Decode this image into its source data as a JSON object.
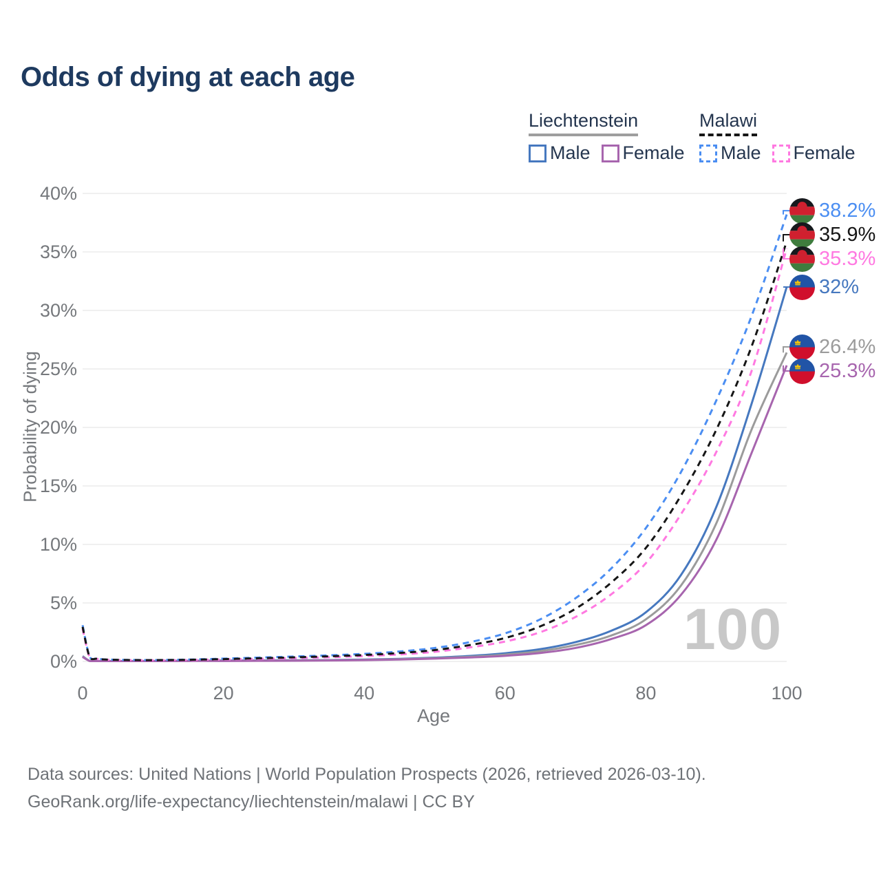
{
  "title": "Odds of dying at each age",
  "legend": {
    "groups": [
      {
        "country": "Liechtenstein",
        "style": "solid",
        "underline_color": "#9e9e9e",
        "items": [
          {
            "label": "Male",
            "series": "liech_male",
            "color": "#4678bf"
          },
          {
            "label": "Female",
            "series": "liech_female",
            "color": "#a765ae"
          }
        ]
      },
      {
        "country": "Malawi",
        "style": "dashed",
        "underline_color": "#161616",
        "items": [
          {
            "label": "Male",
            "series": "malawi_male",
            "color": "#4b8ef2"
          },
          {
            "label": "Female",
            "series": "malawi_female",
            "color": "#ff79e1"
          }
        ]
      }
    ]
  },
  "chart_data": {
    "type": "line",
    "title": "Odds of dying at each age",
    "xlabel": "Age",
    "ylabel": "Probability of dying",
    "xlim": [
      0,
      100
    ],
    "ylim": [
      0,
      40
    ],
    "x_ticks": [
      "0",
      "20",
      "40",
      "60",
      "80",
      "100"
    ],
    "y_tick_labels": [
      "0%",
      "5%",
      "10%",
      "15%",
      "20%",
      "25%",
      "30%",
      "35%",
      "40%"
    ],
    "grid": "horizontal",
    "legend_position": "top-right",
    "series": [
      {
        "id": "liech_male",
        "country": "Liechtenstein",
        "sex": "Male",
        "color": "#4678bf",
        "dashed": false,
        "flag": "liechtenstein",
        "end_label": "32%",
        "end_value": 32,
        "points": [
          [
            0,
            0.45
          ],
          [
            1,
            0.05
          ],
          [
            2,
            0.04
          ],
          [
            3,
            0.03
          ],
          [
            5,
            0.03
          ],
          [
            10,
            0.04
          ],
          [
            15,
            0.06
          ],
          [
            20,
            0.08
          ],
          [
            25,
            0.09
          ],
          [
            30,
            0.1
          ],
          [
            35,
            0.12
          ],
          [
            40,
            0.16
          ],
          [
            45,
            0.22
          ],
          [
            50,
            0.32
          ],
          [
            55,
            0.47
          ],
          [
            60,
            0.7
          ],
          [
            65,
            1.05
          ],
          [
            70,
            1.65
          ],
          [
            75,
            2.6
          ],
          [
            80,
            4.2
          ],
          [
            85,
            7.4
          ],
          [
            90,
            13.2
          ],
          [
            95,
            22
          ],
          [
            100,
            32
          ]
        ]
      },
      {
        "id": "liech_both",
        "country": "Liechtenstein",
        "sex": "Both",
        "color": "#9b9b9b",
        "dashed": false,
        "flag": "liechtenstein",
        "end_label": "26.4%",
        "end_value": 26.4,
        "points": [
          [
            0,
            0.42
          ],
          [
            1,
            0.05
          ],
          [
            2,
            0.04
          ],
          [
            3,
            0.03
          ],
          [
            5,
            0.03
          ],
          [
            10,
            0.03
          ],
          [
            15,
            0.05
          ],
          [
            20,
            0.06
          ],
          [
            25,
            0.07
          ],
          [
            30,
            0.08
          ],
          [
            35,
            0.1
          ],
          [
            40,
            0.13
          ],
          [
            45,
            0.19
          ],
          [
            50,
            0.28
          ],
          [
            55,
            0.4
          ],
          [
            60,
            0.58
          ],
          [
            65,
            0.88
          ],
          [
            70,
            1.4
          ],
          [
            75,
            2.2
          ],
          [
            80,
            3.6
          ],
          [
            85,
            6.5
          ],
          [
            90,
            11.8
          ],
          [
            95,
            19.8
          ],
          [
            100,
            26.4
          ]
        ]
      },
      {
        "id": "liech_female",
        "country": "Liechtenstein",
        "sex": "Female",
        "color": "#a765ae",
        "dashed": false,
        "flag": "liechtenstein",
        "end_label": "25.3%",
        "end_value": 25.3,
        "points": [
          [
            0,
            0.38
          ],
          [
            1,
            0.04
          ],
          [
            2,
            0.03
          ],
          [
            3,
            0.03
          ],
          [
            5,
            0.02
          ],
          [
            10,
            0.03
          ],
          [
            15,
            0.04
          ],
          [
            20,
            0.04
          ],
          [
            25,
            0.05
          ],
          [
            30,
            0.06
          ],
          [
            35,
            0.08
          ],
          [
            40,
            0.11
          ],
          [
            45,
            0.16
          ],
          [
            50,
            0.24
          ],
          [
            55,
            0.34
          ],
          [
            60,
            0.48
          ],
          [
            65,
            0.72
          ],
          [
            70,
            1.15
          ],
          [
            75,
            1.9
          ],
          [
            80,
            3.1
          ],
          [
            85,
            5.7
          ],
          [
            90,
            10.4
          ],
          [
            95,
            17.8
          ],
          [
            100,
            25.3
          ]
        ]
      },
      {
        "id": "malawi_male",
        "country": "Malawi",
        "sex": "Male",
        "color": "#4b8ef2",
        "dashed": true,
        "flag": "malawi",
        "end_label": "38.2%",
        "end_value": 38.2,
        "points": [
          [
            0,
            3.1
          ],
          [
            1,
            0.4
          ],
          [
            2,
            0.25
          ],
          [
            3,
            0.18
          ],
          [
            5,
            0.14
          ],
          [
            10,
            0.12
          ],
          [
            15,
            0.16
          ],
          [
            20,
            0.24
          ],
          [
            25,
            0.33
          ],
          [
            30,
            0.42
          ],
          [
            35,
            0.52
          ],
          [
            40,
            0.65
          ],
          [
            45,
            0.85
          ],
          [
            50,
            1.15
          ],
          [
            55,
            1.65
          ],
          [
            60,
            2.4
          ],
          [
            65,
            3.6
          ],
          [
            70,
            5.4
          ],
          [
            75,
            7.9
          ],
          [
            80,
            11.4
          ],
          [
            85,
            16.2
          ],
          [
            90,
            22.3
          ],
          [
            95,
            29.5
          ],
          [
            100,
            38.2
          ]
        ]
      },
      {
        "id": "malawi_female",
        "country": "Malawi",
        "sex": "Female",
        "color": "#ff79e1",
        "dashed": true,
        "flag": "malawi",
        "end_label": "35.3%",
        "end_value": 35.3,
        "points": [
          [
            0,
            2.8
          ],
          [
            1,
            0.36
          ],
          [
            2,
            0.22
          ],
          [
            3,
            0.16
          ],
          [
            5,
            0.12
          ],
          [
            10,
            0.1
          ],
          [
            15,
            0.12
          ],
          [
            20,
            0.17
          ],
          [
            25,
            0.22
          ],
          [
            30,
            0.28
          ],
          [
            35,
            0.36
          ],
          [
            40,
            0.46
          ],
          [
            45,
            0.6
          ],
          [
            50,
            0.82
          ],
          [
            55,
            1.2
          ],
          [
            60,
            1.7
          ],
          [
            65,
            2.5
          ],
          [
            70,
            3.8
          ],
          [
            75,
            5.7
          ],
          [
            80,
            8.4
          ],
          [
            85,
            12.6
          ],
          [
            90,
            17.9
          ],
          [
            95,
            24.8
          ],
          [
            100,
            35.3
          ]
        ]
      },
      {
        "id": "malawi_both",
        "country": "Malawi",
        "sex": "Both",
        "color": "#161616",
        "dashed": true,
        "flag": "malawi",
        "end_label": "35.9%",
        "end_value": 35.9,
        "points": [
          [
            0,
            2.95
          ],
          [
            1,
            0.38
          ],
          [
            2,
            0.23
          ],
          [
            3,
            0.17
          ],
          [
            5,
            0.13
          ],
          [
            10,
            0.11
          ],
          [
            15,
            0.14
          ],
          [
            20,
            0.2
          ],
          [
            25,
            0.27
          ],
          [
            30,
            0.35
          ],
          [
            35,
            0.44
          ],
          [
            40,
            0.55
          ],
          [
            45,
            0.72
          ],
          [
            50,
            0.97
          ],
          [
            55,
            1.4
          ],
          [
            60,
            2
          ],
          [
            65,
            3
          ],
          [
            70,
            4.5
          ],
          [
            75,
            6.7
          ],
          [
            80,
            9.7
          ],
          [
            85,
            14.2
          ],
          [
            90,
            19.8
          ],
          [
            95,
            26.9
          ],
          [
            100,
            35.9
          ]
        ]
      }
    ]
  },
  "watermark": "100",
  "footer": {
    "line1": "Data sources: United Nations | World Population Prospects (2026, retrieved 2026-03-10).",
    "line2": "GeoRank.org/life-expectancy/liechtenstein/malawi | CC BY"
  }
}
